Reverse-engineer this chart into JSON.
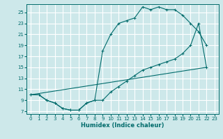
{
  "xlabel": "Humidex (Indice chaleur)",
  "bg_color": "#cde8ea",
  "grid_color": "#ffffff",
  "line_color": "#006b6b",
  "xlim": [
    -0.5,
    23.5
  ],
  "ylim": [
    6.5,
    26.5
  ],
  "xticks": [
    0,
    1,
    2,
    3,
    4,
    5,
    6,
    7,
    8,
    9,
    10,
    11,
    12,
    13,
    14,
    15,
    16,
    17,
    18,
    19,
    20,
    21,
    22,
    23
  ],
  "yticks": [
    7,
    9,
    11,
    13,
    15,
    17,
    19,
    21,
    23,
    25
  ],
  "curve1_x": [
    0,
    1,
    2,
    3,
    4,
    5,
    6,
    7,
    8,
    9,
    10,
    11,
    12,
    13,
    14,
    15,
    16,
    17,
    18,
    19,
    20,
    21,
    22
  ],
  "curve1_y": [
    10,
    10,
    9,
    8.5,
    7.5,
    7.2,
    7.2,
    8.5,
    9,
    18,
    21,
    23,
    23.5,
    24,
    26,
    25.5,
    26,
    25.5,
    25.5,
    24.5,
    23,
    21.5,
    19
  ],
  "curve2_x": [
    0,
    1,
    2,
    3,
    4,
    5,
    6,
    7,
    8,
    9,
    10,
    11,
    12,
    13,
    14,
    15,
    16,
    17,
    18,
    19,
    20,
    21,
    22
  ],
  "curve2_y": [
    10,
    10,
    9,
    8.5,
    7.5,
    7.2,
    7.2,
    8.5,
    9,
    9,
    10.5,
    11.5,
    12.5,
    13.5,
    14.5,
    15,
    15.5,
    16,
    16.5,
    17.5,
    19,
    23,
    15
  ],
  "curve3_x": [
    0,
    22
  ],
  "curve3_y": [
    10,
    15
  ]
}
